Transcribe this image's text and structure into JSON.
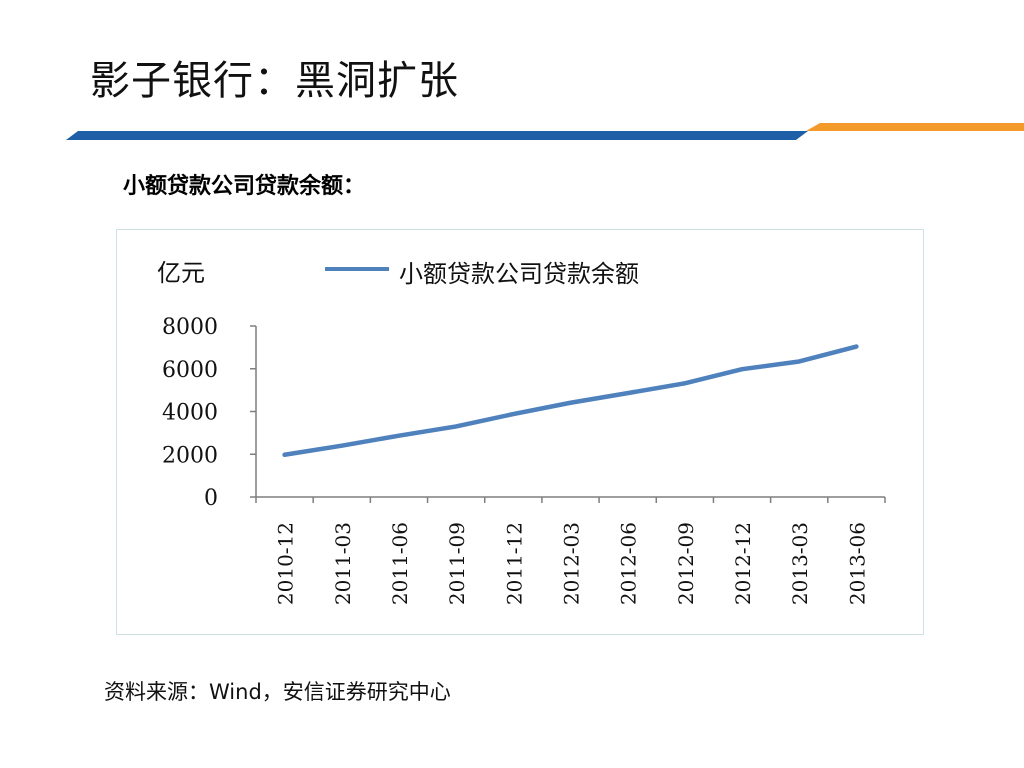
{
  "slide": {
    "title": "影子银行：黑洞扩张",
    "subtitle": "小额贷款公司贷款余额：",
    "source": "资料来源：Wind，安信证券研究中心"
  },
  "colors": {
    "series": "#4f81bd",
    "band_blue": "#1f5fa8",
    "band_orange": "#f39a2b",
    "axis": "#7f7f7f"
  },
  "chart_data": {
    "type": "line",
    "unit_label": "亿元",
    "categories": [
      "2010-12",
      "2011-03",
      "2011-06",
      "2011-09",
      "2011-12",
      "2012-03",
      "2012-06",
      "2012-09",
      "2012-12",
      "2013-03",
      "2013-06"
    ],
    "series": [
      {
        "name": "小额贷款公司贷款余额",
        "values": [
          1975,
          2400,
          2870,
          3300,
          3880,
          4410,
          4860,
          5320,
          5980,
          6340,
          7040
        ]
      }
    ],
    "yticks": [
      0,
      2000,
      4000,
      6000,
      8000
    ],
    "ylim": [
      0,
      8000
    ],
    "legend": "top-center",
    "grid": false
  }
}
